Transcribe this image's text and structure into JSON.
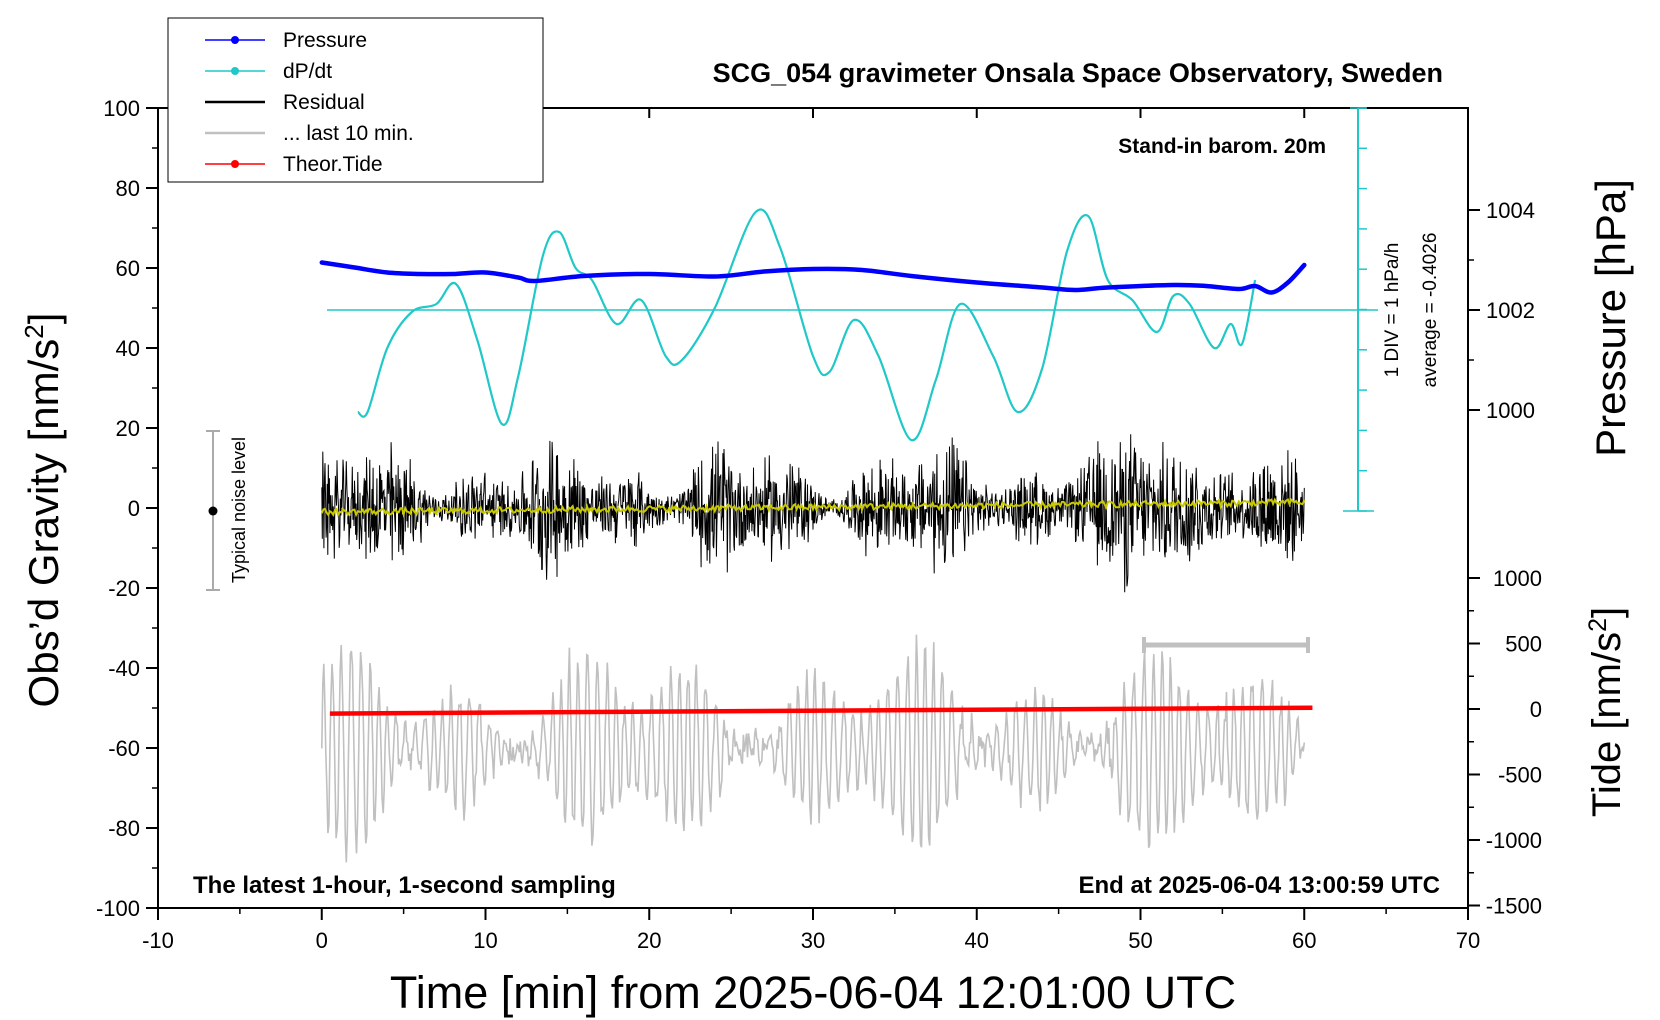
{
  "chart_data": {
    "type": "line",
    "title": "SCG_054 gravimeter Onsala Space Observatory, Sweden",
    "subtitle_right": "Stand-in barom. 20m",
    "footer_left": "The latest 1-hour, 1-second sampling",
    "footer_right": "End at 2025-06-04 13:00:59 UTC",
    "xlabel": "Time [min] from 2025-06-04 12:01:00 UTC",
    "ylabel_main": "Obs’d Gravity [nm/s",
    "ylabel_main_sup": "2",
    "ylabel_main_end": "]",
    "ylabel_pressure": "Pressure [hPa]",
    "ylabel_tide": "Tide [nm/s",
    "ylabel_tide_sup": "2",
    "ylabel_tide_end": "]",
    "xlim": [
      -10,
      70
    ],
    "ylim": [
      -100,
      100
    ],
    "xticks": [
      "-10",
      "0",
      "10",
      "20",
      "30",
      "40",
      "50",
      "60",
      "70"
    ],
    "yticks": [
      "100",
      "80",
      "60",
      "40",
      "20",
      "0",
      "-20",
      "-40",
      "-60",
      "-80",
      "-100"
    ],
    "pressure_ticks": [
      "1004",
      "1002",
      "1000"
    ],
    "tide_ticks": [
      "1000",
      "500",
      "0",
      "-500",
      "-1000",
      "-1500"
    ],
    "grid": false,
    "legend_placement": "top-left",
    "legend": [
      {
        "label": "Pressure",
        "color": "#0000ff",
        "marker": true
      },
      {
        "label": "dP/dt",
        "color": "#20c8c8",
        "marker": true
      },
      {
        "label": "Residual",
        "color": "#000000",
        "marker": false
      },
      {
        "label": "... last 10 min.",
        "color": "#c0c0c0",
        "marker": false
      },
      {
        "label": "Theor.Tide",
        "color": "#ff0000",
        "marker": true
      }
    ],
    "noise_label": "Typical noise level",
    "dpdt_scale_label": "1 DIV = 1 hPa/h",
    "dpdt_average_label": "average = -0.4026",
    "series": [
      {
        "name": "Pressure",
        "unit": "hPa",
        "color": "#0000ff",
        "x": [
          0,
          2,
          4,
          6,
          8,
          10,
          12,
          13,
          16,
          20,
          24,
          27,
          30,
          33,
          36,
          40,
          44,
          46,
          48,
          52,
          54,
          56,
          57,
          58,
          59,
          60
        ],
        "values": [
          1002.95,
          1002.85,
          1002.75,
          1002.72,
          1002.72,
          1002.75,
          1002.65,
          1002.58,
          1002.68,
          1002.72,
          1002.67,
          1002.77,
          1002.82,
          1002.8,
          1002.68,
          1002.55,
          1002.45,
          1002.4,
          1002.45,
          1002.5,
          1002.48,
          1002.42,
          1002.48,
          1002.35,
          1002.55,
          1002.9
        ]
      },
      {
        "name": "dP/dt",
        "unit": "nm/s2 (plot scale)",
        "color": "#20c8c8",
        "x": [
          2.2,
          2.8,
          4,
          5.5,
          7,
          8.2,
          9.5,
          11,
          12,
          13.5,
          14.5,
          15.5,
          16.5,
          18,
          19.5,
          21,
          22,
          24,
          26.5,
          28,
          30,
          31,
          32.5,
          34,
          36,
          37.5,
          39,
          41,
          42.5,
          44,
          45.5,
          46.8,
          48,
          49.5,
          51,
          52,
          53,
          54.5,
          55.5,
          56.2,
          57
        ],
        "values": [
          24,
          24,
          40,
          49,
          51,
          56,
          42,
          21,
          33,
          63,
          69,
          60,
          57,
          46,
          52,
          38,
          37,
          50,
          74,
          65,
          38,
          34,
          47,
          38,
          17,
          32,
          51,
          38,
          24,
          35,
          64,
          73,
          57,
          52,
          44,
          53,
          51,
          40,
          46,
          41,
          57
        ]
      },
      {
        "name": "Residual",
        "unit": "nm/s2",
        "color": "#000000",
        "x": [
          0,
          60
        ],
        "values": [
          0,
          0
        ]
      },
      {
        "name": "Theor.Tide",
        "unit": "nm/s2",
        "color": "#ff0000",
        "x": [
          0.5,
          60.5
        ],
        "values": [
          -35,
          10
        ]
      }
    ]
  }
}
